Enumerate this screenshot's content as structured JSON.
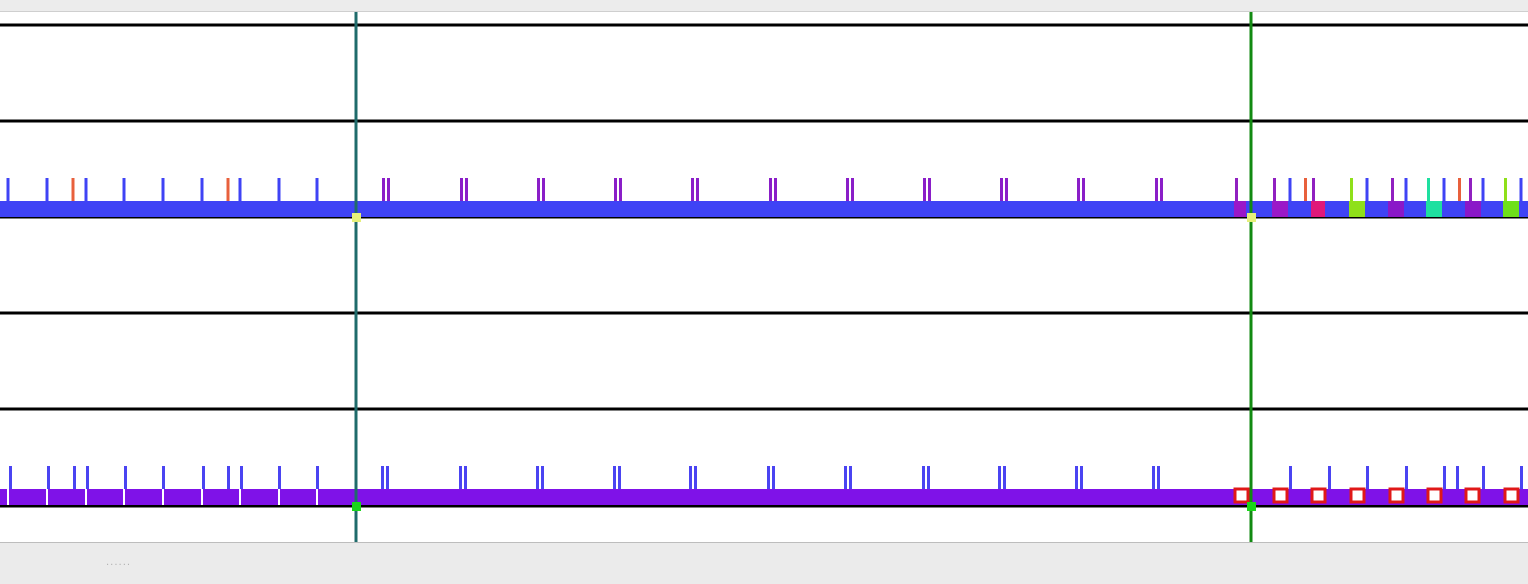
{
  "colors": {
    "background": "#ffffff",
    "grid_line": "#000000",
    "marker_left": "#1f6b6b",
    "marker_right": "#128a12",
    "track1_bar": "#3f43f5",
    "track2_bar": "#7f12e8",
    "marker_point_lime": "#e6f07a",
    "marker_point_green": "#19d619",
    "event_square_stroke": "#e01818"
  },
  "footer": {
    "grip_text": "......"
  }
}
